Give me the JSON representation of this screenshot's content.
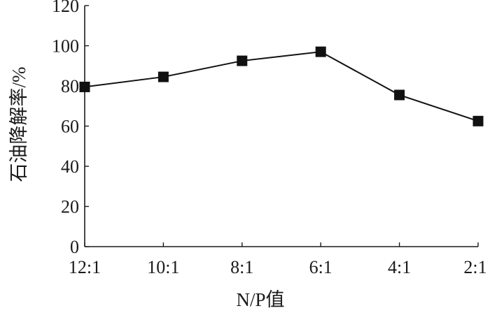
{
  "chart_data": {
    "type": "line",
    "categories": [
      "12:1",
      "10:1",
      "8:1",
      "6:1",
      "4:1",
      "2:1"
    ],
    "series": [
      {
        "values": [
          79.5,
          84.5,
          92.5,
          97,
          75.5,
          62.5
        ]
      }
    ],
    "xlabel": "N/P值",
    "ylabel": "石油降解率/%",
    "ylim": [
      0,
      120
    ],
    "yticks": [
      0,
      20,
      40,
      60,
      80,
      100,
      120
    ],
    "grid": false,
    "marker": "square",
    "colors": {
      "series": "#111111",
      "axis": "#1a1a1a"
    }
  }
}
